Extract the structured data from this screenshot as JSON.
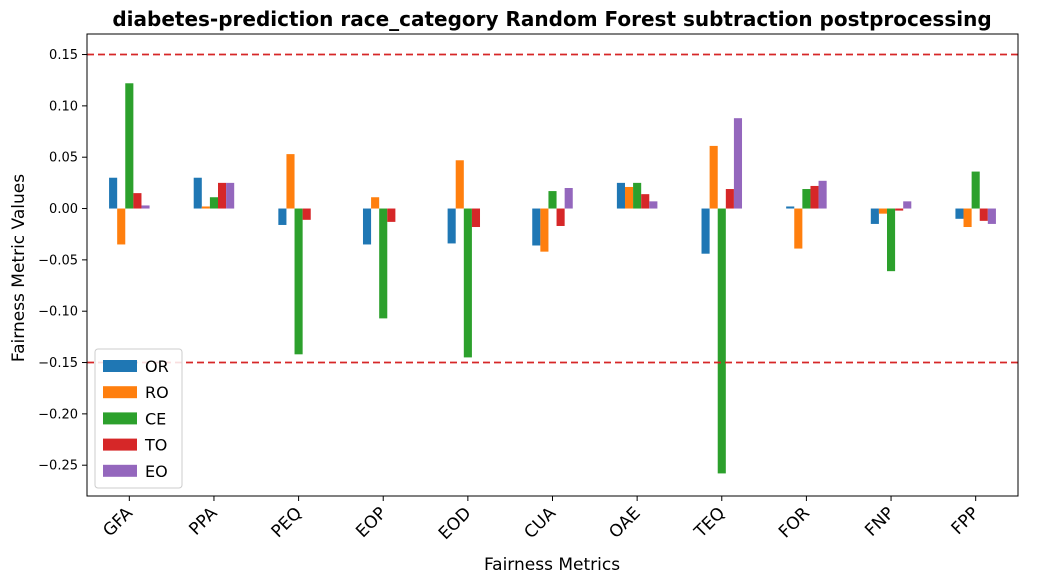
{
  "chart_data": {
    "type": "bar",
    "title": "diabetes-prediction race_category Random Forest subtraction postprocessing",
    "xlabel": "Fairness Metrics",
    "ylabel": "Fairness Metric Values",
    "categories": [
      "GFA",
      "PPA",
      "PEQ",
      "EOP",
      "EOD",
      "CUA",
      "OAE",
      "TEQ",
      "FOR",
      "FNP",
      "FPP"
    ],
    "ylim": [
      -0.28,
      0.17
    ],
    "yticks": [
      -0.25,
      -0.2,
      -0.15,
      -0.1,
      -0.05,
      0.0,
      0.05,
      0.1,
      0.15
    ],
    "ytick_labels": [
      "−0.25",
      "−0.20",
      "−0.15",
      "−0.10",
      "−0.05",
      "0.00",
      "0.05",
      "0.10",
      "0.15"
    ],
    "reference_lines": [
      0.15,
      -0.15
    ],
    "reference_line_color": "#d62728",
    "legend_position": "lower-left",
    "grid": false,
    "series": [
      {
        "name": "OR",
        "color": "#1f77b4",
        "values": [
          0.03,
          0.03,
          -0.016,
          -0.035,
          -0.034,
          -0.036,
          0.025,
          -0.044,
          0.002,
          -0.015,
          -0.01
        ]
      },
      {
        "name": "RO",
        "color": "#ff7f0e",
        "values": [
          -0.035,
          0.002,
          0.053,
          0.011,
          0.047,
          -0.042,
          0.021,
          0.061,
          -0.039,
          -0.005,
          -0.018
        ]
      },
      {
        "name": "CE",
        "color": "#2ca02c",
        "values": [
          0.122,
          0.011,
          -0.142,
          -0.107,
          -0.145,
          0.017,
          0.025,
          -0.258,
          0.019,
          -0.061,
          0.036
        ]
      },
      {
        "name": "TO",
        "color": "#d62728",
        "values": [
          0.015,
          0.025,
          -0.011,
          -0.013,
          -0.018,
          -0.017,
          0.014,
          0.019,
          0.022,
          -0.002,
          -0.012
        ]
      },
      {
        "name": "EO",
        "color": "#9467bd",
        "values": [
          0.003,
          0.025,
          0.0,
          0.0,
          0.0,
          0.02,
          0.007,
          0.088,
          0.027,
          0.007,
          -0.015
        ]
      }
    ]
  }
}
